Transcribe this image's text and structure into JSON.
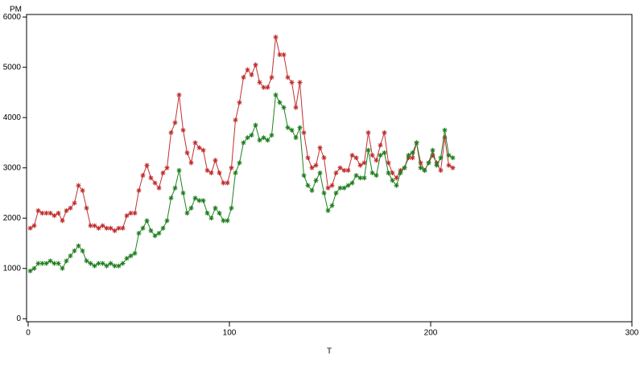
{
  "chart_data": {
    "type": "line",
    "y_label": "PM",
    "x_label": "T",
    "xlim": [
      0,
      300
    ],
    "xticks": [
      0,
      100,
      200,
      300
    ],
    "ylim": [
      -60,
      6050
    ],
    "yticks": [
      0,
      1000,
      2000,
      3000,
      4000,
      5000,
      6000
    ],
    "x": [
      1,
      3,
      5,
      7,
      9,
      11,
      13,
      15,
      17,
      19,
      21,
      23,
      25,
      27,
      29,
      31,
      33,
      35,
      37,
      39,
      41,
      43,
      45,
      47,
      49,
      51,
      53,
      55,
      57,
      59,
      61,
      63,
      65,
      67,
      69,
      71,
      73,
      75,
      77,
      79,
      81,
      83,
      85,
      87,
      89,
      91,
      93,
      95,
      97,
      99,
      101,
      103,
      105,
      107,
      109,
      111,
      113,
      115,
      117,
      119,
      121,
      123,
      125,
      127,
      129,
      131,
      133,
      135,
      137,
      139,
      141,
      143,
      145,
      147,
      149,
      151,
      153,
      155,
      157,
      159,
      161,
      163,
      165,
      167,
      169,
      171,
      173,
      175,
      177,
      179,
      181,
      183,
      185,
      187,
      189,
      191,
      193,
      195,
      197,
      199,
      201,
      203,
      205,
      207,
      209,
      211
    ],
    "series": [
      {
        "color": "#c03030",
        "values": [
          1800,
          1850,
          2150,
          2100,
          2100,
          2100,
          2050,
          2100,
          1950,
          2150,
          2200,
          2300,
          2650,
          2550,
          2200,
          1850,
          1850,
          1800,
          1850,
          1800,
          1800,
          1750,
          1800,
          1800,
          2050,
          2100,
          2100,
          2550,
          2850,
          3050,
          2800,
          2700,
          2600,
          2900,
          3000,
          3700,
          3900,
          4450,
          3750,
          3300,
          3100,
          3500,
          3400,
          3350,
          2950,
          2900,
          3150,
          2900,
          2700,
          2700,
          3000,
          3950,
          4300,
          4800,
          4950,
          4850,
          5050,
          4700,
          4600,
          4600,
          4800,
          5600,
          5250,
          5250,
          4800,
          4700,
          4200,
          4700,
          3700,
          3200,
          3000,
          3050,
          3400,
          3200,
          2600,
          2650,
          2900,
          3000,
          2950,
          2950,
          3250,
          3200,
          3050,
          3100,
          3700,
          3250,
          3150,
          3450,
          3700,
          3100,
          2900,
          2800,
          2950,
          3000,
          3200,
          3200,
          3500,
          3100,
          2950,
          3100,
          3250,
          3100,
          2950,
          3600,
          3050,
          3000
        ]
      },
      {
        "color": "#208020",
        "values": [
          950,
          1000,
          1100,
          1100,
          1100,
          1150,
          1100,
          1100,
          1000,
          1150,
          1250,
          1350,
          1450,
          1350,
          1150,
          1100,
          1050,
          1100,
          1100,
          1050,
          1100,
          1050,
          1050,
          1100,
          1200,
          1250,
          1300,
          1700,
          1800,
          1950,
          1750,
          1650,
          1700,
          1800,
          1950,
          2400,
          2600,
          2950,
          2500,
          2100,
          2200,
          2400,
          2350,
          2350,
          2100,
          2000,
          2200,
          2100,
          1950,
          1950,
          2200,
          2900,
          3100,
          3500,
          3600,
          3650,
          3850,
          3550,
          3600,
          3550,
          3650,
          4450,
          4300,
          4200,
          3800,
          3750,
          3600,
          3800,
          2850,
          2650,
          2550,
          2750,
          2900,
          2500,
          2150,
          2250,
          2500,
          2600,
          2600,
          2650,
          2700,
          2850,
          2800,
          2800,
          3350,
          2900,
          2850,
          3250,
          3300,
          2900,
          2750,
          2650,
          2900,
          3000,
          3250,
          3300,
          3500,
          3000,
          2950,
          3100,
          3350,
          3050,
          3200,
          3750,
          3250,
          3200
        ]
      }
    ]
  }
}
